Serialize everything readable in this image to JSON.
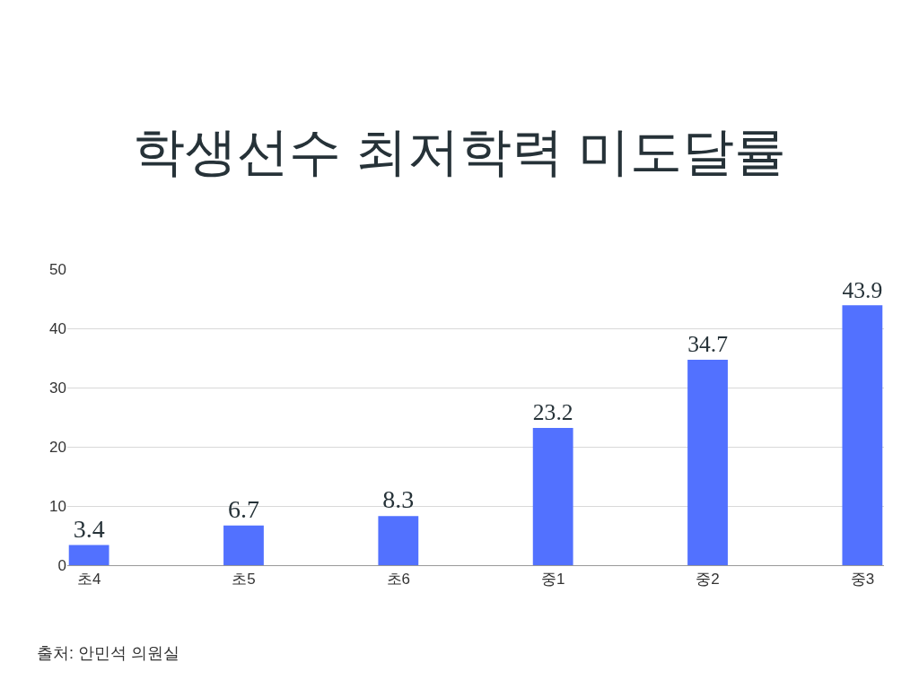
{
  "chart_data": {
    "type": "bar",
    "title": "학생선수 최저학력 미도달률",
    "categories": [
      "초4",
      "초5",
      "초6",
      "중1",
      "중2",
      "중3"
    ],
    "values": [
      3.4,
      6.7,
      8.3,
      23.2,
      34.7,
      43.9
    ],
    "color": "#5271ff",
    "ylim": [
      0,
      50
    ],
    "yticks": [
      0,
      10,
      20,
      30,
      40,
      50
    ],
    "grid": "y",
    "data_labels": true,
    "annotations": [
      "출처: 안민석 의원실"
    ]
  }
}
